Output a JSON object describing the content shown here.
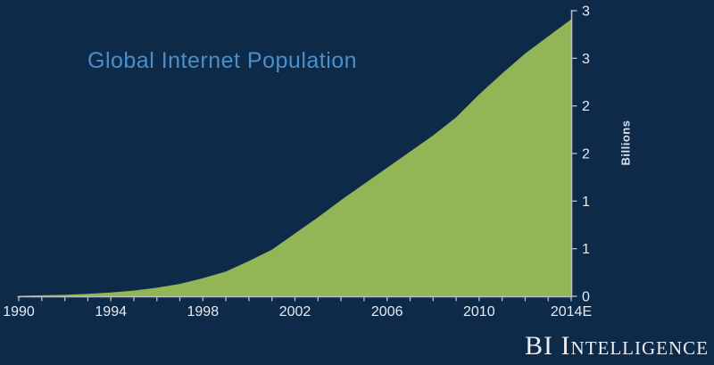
{
  "title": {
    "text": "Global Internet Population"
  },
  "branding": {
    "logo_text": "BI Intelligence"
  },
  "chart_data": {
    "type": "area",
    "title": "Global Internet Population",
    "xlabel": "",
    "ylabel": "Billions",
    "x": [
      1990,
      1991,
      1992,
      1993,
      1994,
      1995,
      1996,
      1997,
      1998,
      1999,
      2000,
      2001,
      2002,
      2003,
      2004,
      2005,
      2006,
      2007,
      2008,
      2009,
      2010,
      2011,
      2012,
      2013,
      2014
    ],
    "series": [
      {
        "name": "Global Internet Population (billions)",
        "values": [
          0.005,
          0.01,
          0.015,
          0.025,
          0.04,
          0.06,
          0.09,
          0.13,
          0.19,
          0.26,
          0.37,
          0.49,
          0.66,
          0.83,
          1.01,
          1.18,
          1.35,
          1.52,
          1.69,
          1.88,
          2.12,
          2.34,
          2.55,
          2.73,
          2.91
        ]
      }
    ],
    "xlim": [
      1990,
      2014
    ],
    "ylim": [
      0,
      3
    ],
    "x_tick_years": [
      1990,
      1994,
      1998,
      2002,
      2006,
      2010,
      2014
    ],
    "x_tick_labels": [
      "1990",
      "1994",
      "1998",
      "2002",
      "2006",
      "2010",
      "2014E"
    ],
    "x_minor_tick_interval_years": 1,
    "y_tick_values": [
      0,
      0.5,
      1,
      1.5,
      2,
      2.5,
      3
    ],
    "y_tick_labels": [
      "0",
      "1",
      "1",
      "2",
      "2",
      "3",
      "3"
    ],
    "grid": false,
    "legend_position": "none",
    "colors": {
      "background": "#0E2A49",
      "area_fill": "#92B656",
      "axis_line": "#B7BEC5",
      "tick_text": "#E8EAEC",
      "title_text": "#4B8EC9",
      "logo_text": "#EDEFF2"
    }
  }
}
